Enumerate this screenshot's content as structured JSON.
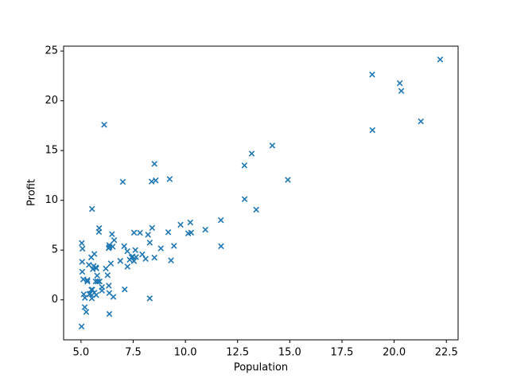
{
  "chart_data": {
    "type": "scatter",
    "xlabel": "Population",
    "ylabel": "Profit",
    "marker": "x",
    "color": "#1f77b4",
    "xlim": [
      4.168,
      23.062
    ],
    "ylim": [
      -4.02,
      25.49
    ],
    "xticks": [
      {
        "value": 5,
        "label": "5.0"
      },
      {
        "value": 7.5,
        "label": "7.5"
      },
      {
        "value": 10,
        "label": "10.0"
      },
      {
        "value": 12.5,
        "label": "12.5"
      },
      {
        "value": 15,
        "label": "15.0"
      },
      {
        "value": 17.5,
        "label": "17.5"
      },
      {
        "value": 20,
        "label": "20.0"
      },
      {
        "value": 22.5,
        "label": "22.5"
      }
    ],
    "yticks": [
      0,
      5,
      10,
      15,
      20,
      25
    ],
    "x": [
      6.1101,
      5.5277,
      8.5186,
      7.0032,
      5.8598,
      8.3829,
      7.4764,
      8.5781,
      6.4862,
      5.0546,
      5.7107,
      14.164,
      5.734,
      8.4084,
      5.6407,
      5.3794,
      6.3654,
      5.1301,
      6.4296,
      7.0708,
      6.1891,
      20.27,
      5.4901,
      6.3261,
      5.5649,
      18.945,
      12.828,
      10.957,
      13.176,
      22.203,
      5.2524,
      6.5894,
      9.2482,
      5.8918,
      8.2111,
      7.9334,
      8.0959,
      5.6063,
      12.836,
      6.3534,
      5.4069,
      6.8825,
      11.708,
      5.7737,
      7.8247,
      7.0931,
      5.0702,
      5.8014,
      11.7,
      5.5416,
      7.5402,
      5.3077,
      7.4239,
      7.6031,
      6.3328,
      6.3589,
      6.2742,
      5.6397,
      9.3102,
      9.4536,
      8.8254,
      5.1793,
      21.279,
      14.908,
      18.959,
      7.2182,
      8.2951,
      10.236,
      5.4994,
      20.341,
      10.136,
      7.3345,
      6.0062,
      7.2259,
      5.0269,
      6.5479,
      7.5386,
      5.0365,
      10.274,
      5.1077,
      5.7292,
      5.1884,
      6.3557,
      9.7687,
      6.5159,
      8.5172,
      9.1802,
      6.002,
      5.5204,
      5.0594,
      5.7077,
      7.6366,
      5.8707,
      5.3054,
      8.2934,
      13.394,
      5.4369
    ],
    "y": [
      17.592,
      9.1302,
      13.662,
      11.854,
      6.8233,
      11.886,
      4.3483,
      12,
      6.5987,
      3.8166,
      3.2522,
      15.505,
      3.1551,
      7.2258,
      0.71618,
      3.5129,
      5.3048,
      0.56077,
      3.6518,
      5.3893,
      3.1386,
      21.767,
      4.263,
      5.1875,
      3.0825,
      22.638,
      13.501,
      7.0467,
      14.692,
      24.147,
      -1.22,
      5.9966,
      12.134,
      1.8495,
      6.5426,
      4.5623,
      4.1164,
      3.3928,
      10.117,
      5.4974,
      0.55657,
      3.9115,
      5.3854,
      2.4406,
      6.7318,
      1.0463,
      5.1337,
      1.844,
      8.0043,
      1.0179,
      6.7504,
      1.8396,
      4.2885,
      4.9981,
      1.4233,
      -1.4211,
      2.4756,
      4.6042,
      3.9624,
      5.4141,
      5.1694,
      -0.74279,
      17.929,
      12.054,
      17.054,
      4.8852,
      5.7442,
      7.7754,
      1.0173,
      20.992,
      6.6799,
      4.0259,
      1.2784,
      3.3411,
      -2.6807,
      0.29678,
      3.8845,
      5.7014,
      6.7526,
      2.0576,
      0.47953,
      0.20421,
      0.67861,
      7.5435,
      5.3436,
      4.2415,
      6.7981,
      0.92695,
      0.152,
      2.8214,
      1.8451,
      4.2959,
      7.2029,
      1.9869,
      0.14454,
      9.0551,
      0.61705
    ]
  }
}
